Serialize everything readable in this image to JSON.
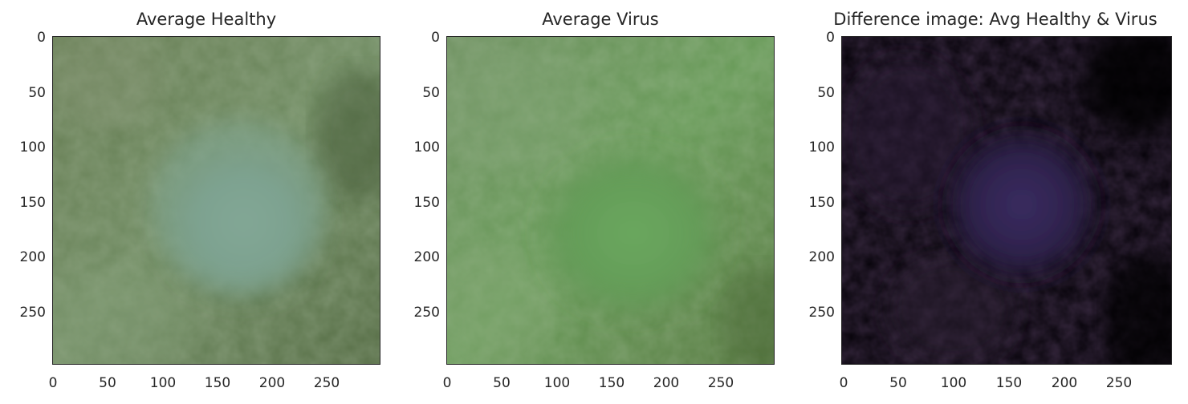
{
  "panels": [
    {
      "title": "Average Healthy",
      "yticks": [
        "0",
        "50",
        "100",
        "150",
        "200",
        "250"
      ],
      "xticks": [
        "0",
        "50",
        "100",
        "150",
        "200",
        "250"
      ],
      "image_extent": [
        0,
        300
      ]
    },
    {
      "title": "Average Virus",
      "yticks": [
        "0",
        "50",
        "100",
        "150",
        "200",
        "250"
      ],
      "xticks": [
        "0",
        "50",
        "100",
        "150",
        "200",
        "250"
      ],
      "image_extent": [
        0,
        300
      ]
    },
    {
      "title": "Difference image: Avg Healthy & Virus",
      "yticks": [
        "0",
        "50",
        "100",
        "150",
        "200",
        "250"
      ],
      "xticks": [
        "0",
        "50",
        "100",
        "150",
        "200",
        "250"
      ],
      "image_extent": [
        0,
        300
      ]
    }
  ],
  "colors": {
    "healthy_base": "#5f7a4c",
    "healthy_center": "#7fa291",
    "virus_base": "#5f8f4c",
    "virus_center": "#6aa65a",
    "difference_base": "#0a030e",
    "difference_center": "#3a2a5c"
  }
}
